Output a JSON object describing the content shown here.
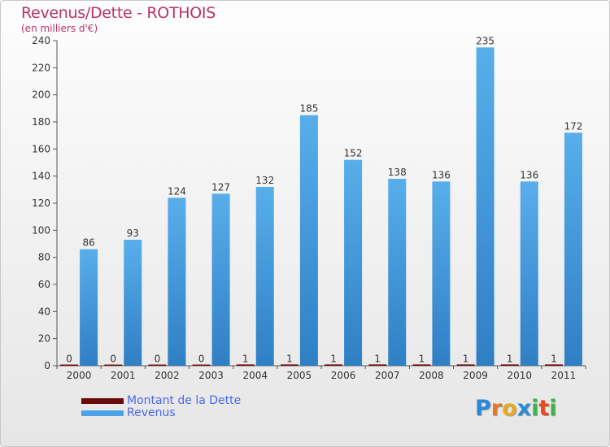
{
  "title": "Revenus/Dette - ROTHOIS",
  "subtitle": "(en milliers d'€)",
  "chart_data": {
    "type": "bar",
    "title": "Revenus/Dette - ROTHOIS",
    "ylabel": "(en milliers d'€)",
    "xlabel": "",
    "categories": [
      "2000",
      "2001",
      "2002",
      "2003",
      "2004",
      "2005",
      "2006",
      "2007",
      "2008",
      "2009",
      "2010",
      "2011"
    ],
    "series": [
      {
        "name": "Montant de la Dette",
        "color": "#6b0a0a",
        "values": [
          0,
          0,
          0,
          0,
          1,
          1,
          1,
          1,
          1,
          1,
          1,
          1
        ]
      },
      {
        "name": "Revenus",
        "color": "#4da1e6",
        "values": [
          86,
          93,
          124,
          127,
          132,
          185,
          152,
          138,
          136,
          235,
          136,
          172
        ]
      }
    ],
    "ylim": [
      0,
      240
    ],
    "yticks": [
      0,
      20,
      40,
      60,
      80,
      100,
      120,
      140,
      160,
      180,
      200,
      220,
      240
    ],
    "grid": false,
    "legend": "bottom-left"
  },
  "legend": {
    "items": [
      {
        "label": "Montant de la Dette",
        "color": "#6b0a0a"
      },
      {
        "label": "Revenus",
        "color": "#4da1e6"
      }
    ]
  },
  "logo": {
    "letters": [
      "P",
      "r",
      "o",
      "x",
      "i",
      "t",
      "i"
    ],
    "colors": [
      "#2a8ad6",
      "#e87722",
      "#e8a822",
      "#2a8ad6",
      "#3ab54a",
      "#e84a22",
      "#3ab54a"
    ]
  }
}
